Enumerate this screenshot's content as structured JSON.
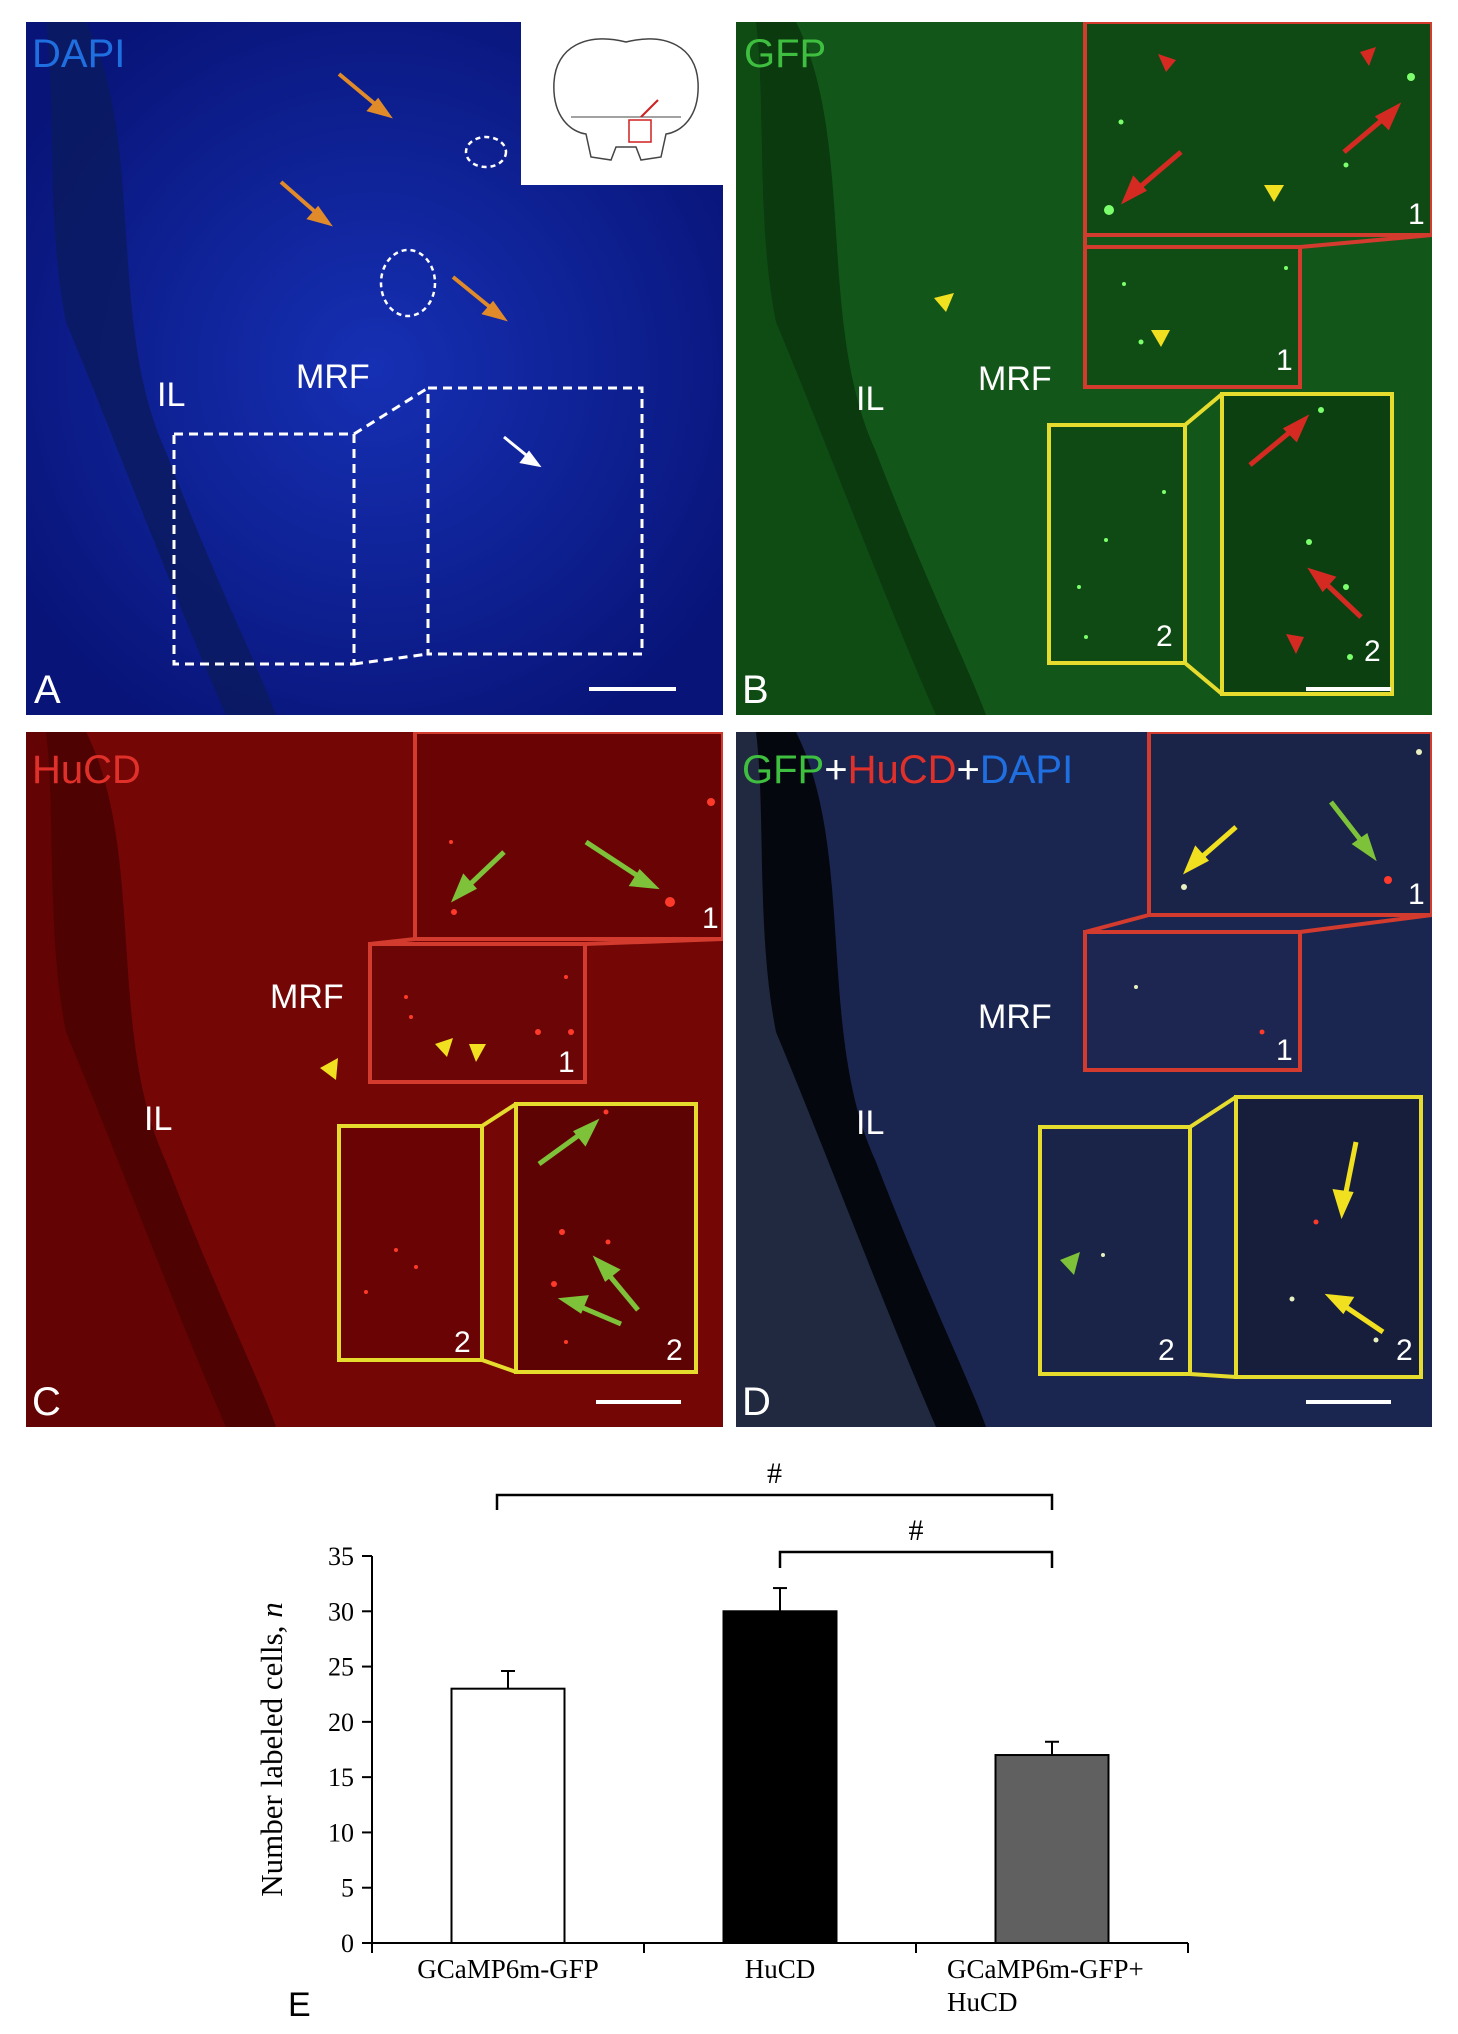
{
  "panels": {
    "A": {
      "label": "A",
      "channel": "DAPI",
      "channel_color": "#1f6fe0",
      "region_left": "IL",
      "region_right": "MRF"
    },
    "B": {
      "label": "B",
      "channel": "GFP",
      "channel_color": "#3fbf3f",
      "region_left": "IL",
      "region_right": "MRF",
      "inset_top_num": "1",
      "inset_top_small_num": "1",
      "inset_bottom_num": "2",
      "inset_bottom_small_num": "2"
    },
    "C": {
      "label": "C",
      "channel": "HuCD",
      "channel_color": "#e0302a",
      "region_left": "IL",
      "region_right": "MRF",
      "inset_top_num": "1",
      "inset_top_small_num": "1",
      "inset_bottom_num": "2",
      "inset_bottom_small_num": "2"
    },
    "D": {
      "label": "D",
      "channel_parts": [
        {
          "text": "GFP",
          "color": "#3fbf3f"
        },
        {
          "text": "+",
          "color": "#ffffff"
        },
        {
          "text": "HuCD",
          "color": "#e0302a"
        },
        {
          "text": "+",
          "color": "#ffffff"
        },
        {
          "text": "DAPI",
          "color": "#1f6fe0"
        }
      ],
      "region_left": "IL",
      "region_right": "MRF",
      "inset_top_num": "1",
      "inset_top_small_num": "1",
      "inset_bottom_num": "2",
      "inset_bottom_small_num": "2"
    },
    "E": {
      "label": "E"
    }
  },
  "chart_data": {
    "type": "bar",
    "categories": [
      "GCaMP6m-GFP",
      "HuCD",
      "GCaMP6m-GFP+\nHuCD"
    ],
    "category_lines": [
      [
        "GCaMP6m-GFP"
      ],
      [
        "HuCD"
      ],
      [
        "GCaMP6m-GFP+",
        "HuCD"
      ]
    ],
    "values": [
      23,
      30,
      17
    ],
    "errors": [
      1.6,
      2.1,
      1.2
    ],
    "bar_colors": [
      "#ffffff",
      "#000000",
      "#606060"
    ],
    "ylabel_main": "Number labeled cells, ",
    "ylabel_italic": "n",
    "ylim": [
      0,
      35
    ],
    "yticks": [
      0,
      5,
      10,
      15,
      20,
      25,
      30,
      35
    ],
    "significance": [
      {
        "from": 0,
        "to": 2,
        "label": "#"
      },
      {
        "from": 1,
        "to": 2,
        "label": "#"
      }
    ]
  }
}
